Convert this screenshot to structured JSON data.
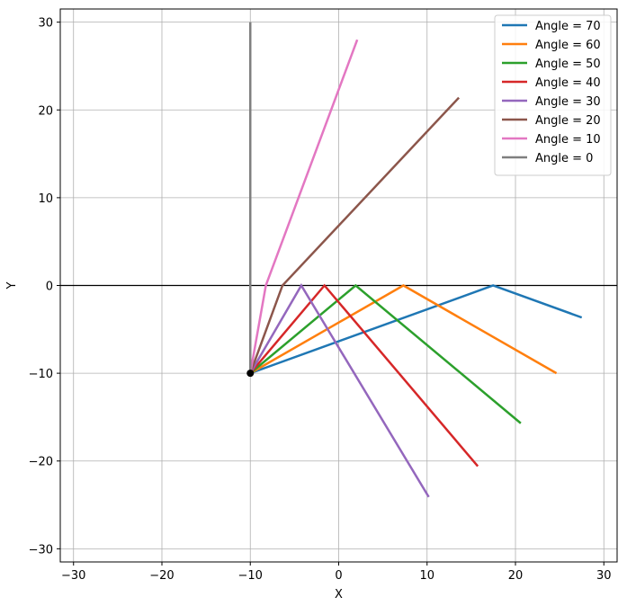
{
  "chart_data": {
    "type": "line",
    "xlabel": "X",
    "ylabel": "Y",
    "xlim": [
      -31.5,
      31.5
    ],
    "ylim": [
      -31.5,
      31.5
    ],
    "xticks": [
      -30,
      -20,
      -10,
      0,
      10,
      20,
      30
    ],
    "yticks": [
      -30,
      -20,
      -10,
      0,
      10,
      20,
      30
    ],
    "grid": true,
    "legend_position": "top-right",
    "reference_line_y": 0,
    "origin_point": {
      "x": -10,
      "y": -10,
      "color": "#000000"
    },
    "series": [
      {
        "name": "Angle = 70",
        "color": "#1f77b4",
        "x": [
          -10,
          17.47,
          27.5
        ],
        "y": [
          -10,
          0,
          -3.65
        ]
      },
      {
        "name": "Angle = 60",
        "color": "#ff7f0e",
        "x": [
          -10,
          7.32,
          24.64
        ],
        "y": [
          -10,
          0,
          -10
        ]
      },
      {
        "name": "Angle = 50",
        "color": "#2ca02c",
        "x": [
          -10,
          1.92,
          20.6
        ],
        "y": [
          -10,
          0,
          -15.7
        ]
      },
      {
        "name": "Angle = 40",
        "color": "#d62728",
        "x": [
          -10,
          -1.61,
          15.74
        ],
        "y": [
          -10,
          0,
          -20.6
        ]
      },
      {
        "name": "Angle = 30",
        "color": "#9467bd",
        "x": [
          -10,
          -4.23,
          10.19
        ],
        "y": [
          -10,
          0,
          -24.1
        ]
      },
      {
        "name": "Angle = 20",
        "color": "#8c564b",
        "x": [
          -10,
          -6.36,
          13.6
        ],
        "y": [
          -10,
          0,
          21.4
        ]
      },
      {
        "name": "Angle = 10",
        "color": "#e377c2",
        "x": [
          -10,
          -8.24,
          2.1
        ],
        "y": [
          -10,
          0,
          28
        ]
      },
      {
        "name": "Angle = 0",
        "color": "#7f7f7f",
        "x": [
          -10,
          -10
        ],
        "y": [
          -10,
          30
        ]
      }
    ]
  }
}
